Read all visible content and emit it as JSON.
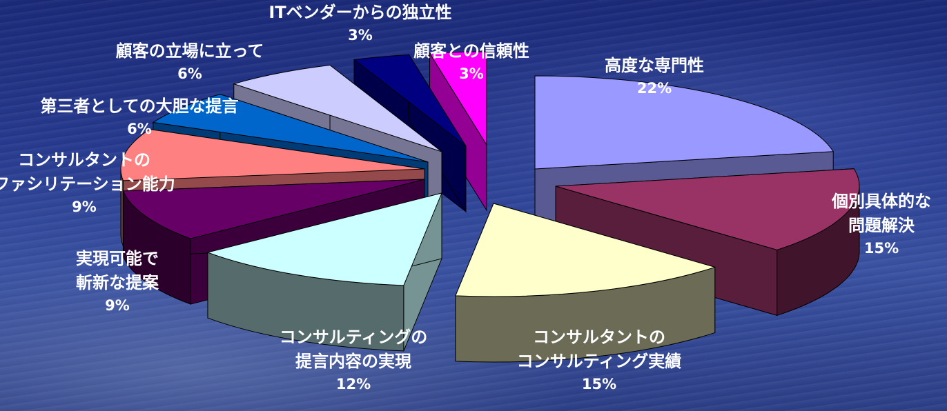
{
  "chart_data": {
    "type": "pie",
    "title": "",
    "slices": [
      {
        "name": "高度な専門性",
        "label_lines": [
          "高度な専門性"
        ],
        "value": 22,
        "pct_label": "22%",
        "color": "#9999ff"
      },
      {
        "name": "個別具体的な問題解決",
        "label_lines": [
          "個別具体的な",
          "問題解決"
        ],
        "value": 15,
        "pct_label": "15%",
        "color": "#993366"
      },
      {
        "name": "コンサルタントのコンサルティング実績",
        "label_lines": [
          "コンサルタントの",
          "コンサルティング実績"
        ],
        "value": 15,
        "pct_label": "15%",
        "color": "#ffffcc"
      },
      {
        "name": "コンサルティングの提言内容の実現",
        "label_lines": [
          "コンサルティングの",
          "提言内容の実現"
        ],
        "value": 12,
        "pct_label": "12%",
        "color": "#ccffff"
      },
      {
        "name": "実現可能で斬新な提案",
        "label_lines": [
          "実現可能で",
          "斬新な提案"
        ],
        "value": 9,
        "pct_label": "9%",
        "color": "#660066"
      },
      {
        "name": "コンサルタントのファシリテーション能力",
        "label_lines": [
          "コンサルタントの",
          "ファシリテーション能力"
        ],
        "value": 9,
        "pct_label": "9%",
        "color": "#ff8080"
      },
      {
        "name": "第三者としての大胆な提言",
        "label_lines": [
          "第三者としての大胆な提言"
        ],
        "value": 6,
        "pct_label": "6%",
        "color": "#0066cc"
      },
      {
        "name": "顧客の立場に立って",
        "label_lines": [
          "顧客の立場に立って"
        ],
        "value": 6,
        "pct_label": "6%",
        "color": "#ccccff"
      },
      {
        "name": "ITベンダーからの独立性",
        "label_lines": [
          "ITベンダーからの独立性"
        ],
        "value": 3,
        "pct_label": "3%",
        "color": "#000080"
      },
      {
        "name": "顧客との信頼性",
        "label_lines": [
          "顧客との信頼性"
        ],
        "value": 3,
        "pct_label": "3%",
        "color": "#ff00ff"
      }
    ],
    "legend": "none",
    "data_labels": "outside"
  }
}
